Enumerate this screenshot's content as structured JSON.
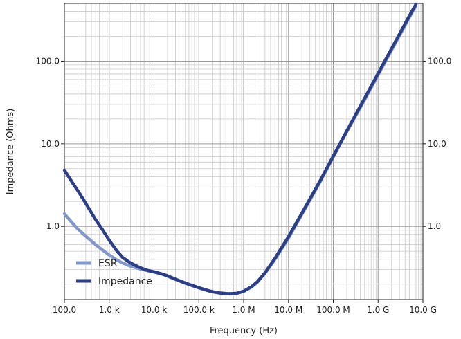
{
  "chart_data": {
    "type": "line",
    "xlabel": "Frequency (Hz)",
    "ylabel": "Impedance (Ohms)",
    "x_scale": "log",
    "y_scale": "log",
    "xlim": [
      100,
      10000000000
    ],
    "ylim": [
      0.13,
      500
    ],
    "grid": true,
    "legend_position": "bottom-left",
    "x_ticks": [
      {
        "value": 100,
        "label": "100.0"
      },
      {
        "value": 1000,
        "label": "1.0 k"
      },
      {
        "value": 10000,
        "label": "10.0 k"
      },
      {
        "value": 100000,
        "label": "100.0 k"
      },
      {
        "value": 1000000,
        "label": "1.0 M"
      },
      {
        "value": 10000000,
        "label": "10.0 M"
      },
      {
        "value": 100000000,
        "label": "100.0 M"
      },
      {
        "value": 1000000000,
        "label": "1.0 G"
      },
      {
        "value": 10000000000,
        "label": "10.0 G"
      }
    ],
    "y_ticks": [
      {
        "value": 1,
        "label": "1.0"
      },
      {
        "value": 10,
        "label": "10.0"
      },
      {
        "value": 100,
        "label": "100.0"
      }
    ],
    "series": [
      {
        "name": "ESR",
        "color": "#8397c9",
        "points": [
          [
            100,
            1.42
          ],
          [
            150,
            1.1
          ],
          [
            200,
            0.93
          ],
          [
            300,
            0.76
          ],
          [
            500,
            0.6
          ],
          [
            700,
            0.52
          ],
          [
            1000,
            0.45
          ],
          [
            1500,
            0.39
          ],
          [
            2000,
            0.36
          ],
          [
            3000,
            0.33
          ],
          [
            5000,
            0.305
          ],
          [
            7000,
            0.292
          ],
          [
            10000,
            0.28
          ],
          [
            15000,
            0.265
          ],
          [
            20000,
            0.25
          ],
          [
            30000,
            0.228
          ],
          [
            50000,
            0.205
          ],
          [
            70000,
            0.192
          ],
          [
            100000,
            0.18
          ],
          [
            150000,
            0.168
          ],
          [
            200000,
            0.161
          ],
          [
            300000,
            0.155
          ],
          [
            400000,
            0.153
          ],
          [
            500000,
            0.152
          ],
          [
            700000,
            0.154
          ],
          [
            1000000,
            0.163
          ],
          [
            1500000,
            0.185
          ],
          [
            2000000,
            0.21
          ],
          [
            3000000,
            0.27
          ],
          [
            5000000,
            0.4
          ],
          [
            7000000,
            0.53
          ],
          [
            10000000,
            0.72
          ],
          [
            20000000,
            1.4
          ],
          [
            50000000,
            3.4
          ],
          [
            100000000,
            6.9
          ],
          [
            200000000,
            14
          ],
          [
            500000000,
            34
          ],
          [
            1000000000,
            68
          ],
          [
            2000000000,
            136
          ],
          [
            5000000000,
            340
          ],
          [
            7000000000,
            470
          ]
        ]
      },
      {
        "name": "Impedance",
        "color": "#2b3e86",
        "points": [
          [
            100,
            4.8
          ],
          [
            150,
            3.4
          ],
          [
            200,
            2.7
          ],
          [
            300,
            1.9
          ],
          [
            500,
            1.2
          ],
          [
            700,
            0.92
          ],
          [
            1000,
            0.68
          ],
          [
            1500,
            0.5
          ],
          [
            2000,
            0.42
          ],
          [
            3000,
            0.36
          ],
          [
            5000,
            0.315
          ],
          [
            7000,
            0.295
          ],
          [
            10000,
            0.282
          ],
          [
            15000,
            0.266
          ],
          [
            20000,
            0.252
          ],
          [
            30000,
            0.23
          ],
          [
            50000,
            0.206
          ],
          [
            70000,
            0.193
          ],
          [
            100000,
            0.181
          ],
          [
            150000,
            0.169
          ],
          [
            200000,
            0.162
          ],
          [
            300000,
            0.156
          ],
          [
            400000,
            0.154
          ],
          [
            500000,
            0.153
          ],
          [
            700000,
            0.155
          ],
          [
            1000000,
            0.164
          ],
          [
            1500000,
            0.186
          ],
          [
            2000000,
            0.212
          ],
          [
            3000000,
            0.275
          ],
          [
            5000000,
            0.41
          ],
          [
            7000000,
            0.55
          ],
          [
            10000000,
            0.75
          ],
          [
            20000000,
            1.45
          ],
          [
            50000000,
            3.5
          ],
          [
            100000000,
            7.1
          ],
          [
            200000000,
            14.3
          ],
          [
            500000000,
            35.5
          ],
          [
            1000000000,
            71
          ],
          [
            2000000000,
            142
          ],
          [
            5000000000,
            355
          ],
          [
            7000000000,
            490
          ]
        ]
      }
    ]
  }
}
